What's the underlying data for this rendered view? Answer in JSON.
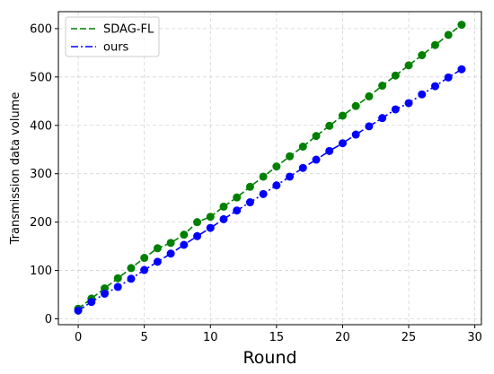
{
  "chart_data": {
    "type": "line",
    "title": "",
    "xlabel": "Round",
    "ylabel": "Transmission data volume",
    "xlim": [
      -1.5,
      30.5
    ],
    "ylim": [
      -12,
      635
    ],
    "xticks": [
      0,
      5,
      10,
      15,
      20,
      25,
      30
    ],
    "yticks": [
      0,
      100,
      200,
      300,
      400,
      500,
      600
    ],
    "grid": true,
    "legend_position": "top-left",
    "x": [
      0,
      1,
      2,
      3,
      4,
      5,
      6,
      7,
      8,
      9,
      10,
      11,
      12,
      13,
      14,
      15,
      16,
      17,
      18,
      19,
      20,
      21,
      22,
      23,
      24,
      25,
      26,
      27,
      28,
      29
    ],
    "series": [
      {
        "name": "SDAG-FL",
        "color": "#008000",
        "line_style": "dashed",
        "marker": "circle",
        "values": [
          21,
          42,
          63,
          84,
          105,
          126,
          146,
          157,
          174,
          200,
          211,
          232,
          251,
          273,
          294,
          315,
          336,
          356,
          378,
          399,
          420,
          440,
          460,
          482,
          503,
          524,
          545,
          566,
          587,
          608
        ]
      },
      {
        "name": "ours",
        "color": "#0000ff",
        "line_style": "dashdot",
        "marker": "circle",
        "values": [
          17,
          35,
          52,
          66,
          83,
          101,
          118,
          135,
          153,
          171,
          188,
          206,
          224,
          241,
          258,
          276,
          294,
          312,
          329,
          347,
          363,
          381,
          398,
          415,
          433,
          446,
          464,
          481,
          499,
          516
        ]
      }
    ]
  }
}
